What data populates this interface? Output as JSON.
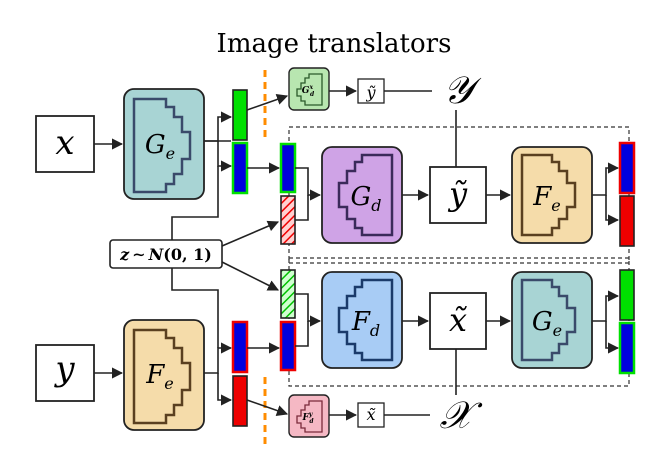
{
  "title": "Image translators",
  "inputs": {
    "x": "x",
    "y": "y"
  },
  "encoders": {
    "top": "G",
    "top_sub": "e",
    "bottom": "F",
    "bottom_sub": "e"
  },
  "translator_top": {
    "decoder": "G",
    "decoder_sub": "d",
    "mid": "ỹ",
    "encoder": "F",
    "encoder_sub": "e"
  },
  "translator_bottom": {
    "decoder": "F",
    "decoder_sub": "d",
    "mid": "x̃",
    "encoder": "G",
    "encoder_sub": "e"
  },
  "noise": {
    "z": "z",
    "sim": "∼",
    "dist": "N",
    "params": "(0, 1)"
  },
  "mini_top": {
    "label": "G",
    "sup": "x",
    "sub": "d",
    "out": "ỹ",
    "domain": "𝒴"
  },
  "mini_bottom": {
    "label": "F",
    "sup": "y",
    "sub": "d",
    "out": "x̃",
    "domain": "𝒳"
  },
  "colors": {
    "teal": "#a8d4d4",
    "orange": "#f5dcaa",
    "purple": "#cfa3e6",
    "blue_box": "#a8ccf5",
    "green": "#00e000",
    "blue": "#0000dd",
    "red": "#ee0000",
    "dash_orange": "#ff8c00",
    "mini_green": "#b8e6b0",
    "mini_pink": "#f5b8c4"
  },
  "icons": [
    "staircase-encoder-icon",
    "staircase-decoder-icon"
  ]
}
